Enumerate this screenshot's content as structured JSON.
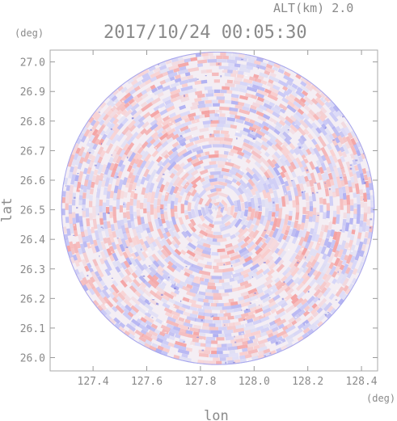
{
  "chart_data": {
    "type": "heatmap",
    "title": "2017/10/24 00:05:30",
    "altitude_label": "ALT(km) 2.0",
    "xlabel": "lon",
    "ylabel": "lat",
    "x_unit": "(deg)",
    "y_unit": "(deg)",
    "xlim": [
      127.24,
      128.46
    ],
    "ylim": [
      25.955,
      27.04
    ],
    "x_ticks": [
      127.4,
      127.6,
      127.8,
      128.0,
      128.2,
      128.4
    ],
    "x_tick_labels": [
      "127.4",
      "127.6",
      "127.8",
      "128.0",
      "128.2",
      "128.4"
    ],
    "y_ticks": [
      26.0,
      26.1,
      26.2,
      26.3,
      26.4,
      26.5,
      26.6,
      26.7,
      26.8,
      26.9,
      27.0
    ],
    "y_tick_labels": [
      "26.0",
      "26.1",
      "26.2",
      "26.3",
      "26.4",
      "26.5",
      "26.6",
      "26.7",
      "26.8",
      "26.9",
      "27.0"
    ],
    "radar_center": [
      127.865,
      26.505
    ],
    "radar_radius_deg": 0.53,
    "colors": {
      "positive": "#f4a6a6",
      "negative": "#b4b4f4",
      "neutral": "#f4eef4",
      "axis": "#999999"
    }
  }
}
